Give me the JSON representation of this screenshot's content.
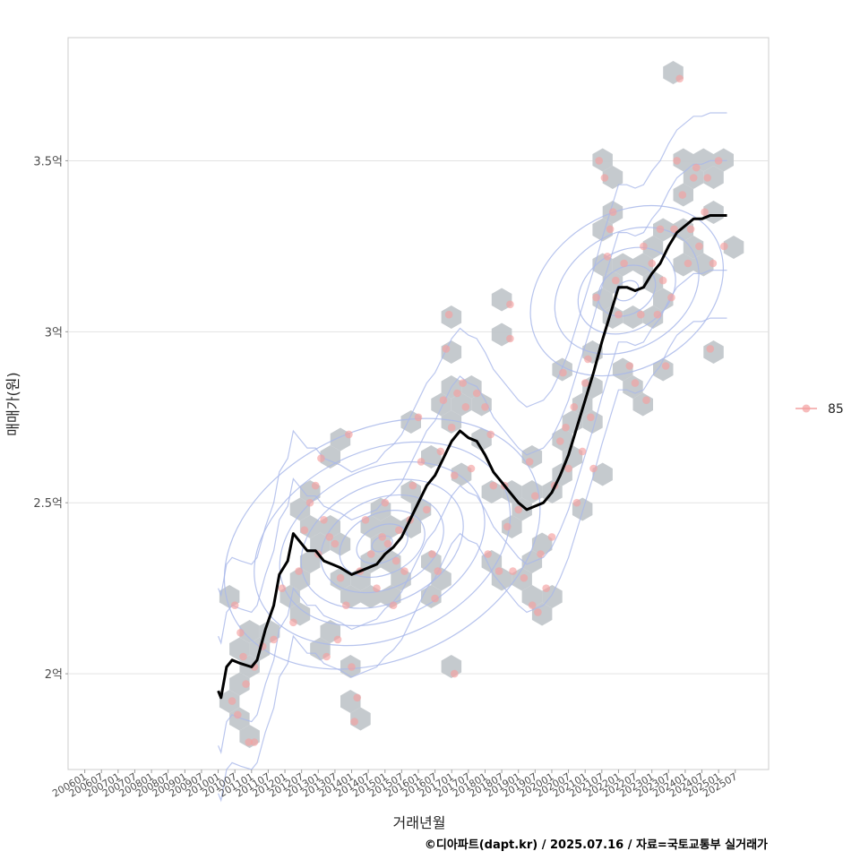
{
  "chart_data": {
    "type": "scatter",
    "xlabel": "거래년월",
    "ylabel": "매매가(원)",
    "caption": "©디아파트(dapt.kr) / 2025.07.16 / 자료=국토교통부 실거래가",
    "legend": {
      "position": "right",
      "entries": [
        "85"
      ]
    },
    "x_ticks": [
      "200601",
      "200607",
      "200701",
      "200707",
      "200801",
      "200807",
      "200901",
      "200907",
      "201001",
      "201007",
      "201101",
      "201107",
      "201201",
      "201207",
      "201301",
      "201307",
      "201401",
      "201407",
      "201501",
      "201507",
      "201601",
      "201607",
      "201701",
      "201707",
      "201801",
      "201807",
      "201901",
      "201907",
      "202001",
      "202007",
      "202101",
      "202107",
      "202201",
      "202207",
      "202301",
      "202307",
      "202401",
      "202407",
      "202501",
      "202507"
    ],
    "y_ticks": [
      {
        "value": 2.0,
        "label": "2억"
      },
      {
        "value": 2.5,
        "label": "2.5억"
      },
      {
        "value": 3.0,
        "label": "3억"
      },
      {
        "value": 3.5,
        "label": "3.5억"
      }
    ],
    "xlim": [
      "2005-07",
      "2026-07"
    ],
    "ylim": [
      1.72,
      3.86
    ],
    "grid": true,
    "colors": {
      "points": "#f4a0a0",
      "hex": "#bfc4c9",
      "contour": "#a9b8ea",
      "trend": "#000000"
    },
    "series": [
      {
        "name": "85",
        "kind": "scatter",
        "points": [
          [
            "2010-07",
            2.2
          ],
          [
            "2010-09",
            2.12
          ],
          [
            "2010-10",
            2.05
          ],
          [
            "2010-06",
            1.92
          ],
          [
            "2010-08",
            1.88
          ],
          [
            "2010-11",
            1.97
          ],
          [
            "2011-02",
            2.02
          ],
          [
            "2011-05",
            2.08
          ],
          [
            "2010-12",
            1.8
          ],
          [
            "2011-02",
            1.8
          ],
          [
            "2011-09",
            2.1
          ],
          [
            "2011-12",
            2.25
          ],
          [
            "2012-04",
            2.15
          ],
          [
            "2012-06",
            2.3
          ],
          [
            "2012-08",
            2.42
          ],
          [
            "2012-10",
            2.5
          ],
          [
            "2012-12",
            2.55
          ],
          [
            "2013-02",
            2.63
          ],
          [
            "2013-01",
            2.35
          ],
          [
            "2013-03",
            2.45
          ],
          [
            "2013-05",
            2.4
          ],
          [
            "2013-07",
            2.38
          ],
          [
            "2013-09",
            2.28
          ],
          [
            "2013-11",
            2.2
          ],
          [
            "2013-04",
            2.05
          ],
          [
            "2013-08",
            2.1
          ],
          [
            "2014-01",
            2.02
          ],
          [
            "2014-03",
            1.93
          ],
          [
            "2014-02",
            1.86
          ],
          [
            "2013-12",
            2.7
          ],
          [
            "2014-04",
            2.3
          ],
          [
            "2014-06",
            2.45
          ],
          [
            "2014-08",
            2.35
          ],
          [
            "2014-10",
            2.25
          ],
          [
            "2014-12",
            2.4
          ],
          [
            "2015-01",
            2.5
          ],
          [
            "2015-02",
            2.38
          ],
          [
            "2015-04",
            2.2
          ],
          [
            "2015-05",
            2.33
          ],
          [
            "2015-06",
            2.42
          ],
          [
            "2015-08",
            2.3
          ],
          [
            "2015-10",
            2.45
          ],
          [
            "2015-11",
            2.55
          ],
          [
            "2016-01",
            2.75
          ],
          [
            "2016-02",
            2.62
          ],
          [
            "2016-04",
            2.48
          ],
          [
            "2016-06",
            2.35
          ],
          [
            "2016-07",
            2.22
          ],
          [
            "2016-08",
            2.3
          ],
          [
            "2016-09",
            2.65
          ],
          [
            "2016-10",
            2.8
          ],
          [
            "2016-11",
            2.95
          ],
          [
            "2016-12",
            3.05
          ],
          [
            "2017-01",
            2.72
          ],
          [
            "2017-02",
            2.58
          ],
          [
            "2017-03",
            2.82
          ],
          [
            "2017-05",
            2.85
          ],
          [
            "2017-06",
            2.78
          ],
          [
            "2017-02",
            2.0
          ],
          [
            "2017-08",
            2.6
          ],
          [
            "2017-10",
            2.82
          ],
          [
            "2018-01",
            2.78
          ],
          [
            "2018-03",
            2.7
          ],
          [
            "2018-04",
            2.55
          ],
          [
            "2018-02",
            2.35
          ],
          [
            "2018-06",
            2.3
          ],
          [
            "2018-08",
            2.55
          ],
          [
            "2018-10",
            3.08
          ],
          [
            "2018-10",
            2.98
          ],
          [
            "2018-09",
            2.43
          ],
          [
            "2018-11",
            2.3
          ],
          [
            "2019-03",
            2.28
          ],
          [
            "2019-01",
            2.48
          ],
          [
            "2019-05",
            2.62
          ],
          [
            "2019-07",
            2.52
          ],
          [
            "2019-09",
            2.35
          ],
          [
            "2019-06",
            2.2
          ],
          [
            "2019-08",
            2.18
          ],
          [
            "2019-11",
            2.25
          ],
          [
            "2020-01",
            2.4
          ],
          [
            "2020-02",
            2.55
          ],
          [
            "2020-04",
            2.68
          ],
          [
            "2020-05",
            2.88
          ],
          [
            "2020-06",
            2.72
          ],
          [
            "2020-07",
            2.6
          ],
          [
            "2020-09",
            2.78
          ],
          [
            "2020-10",
            2.5
          ],
          [
            "2020-12",
            2.65
          ],
          [
            "2021-01",
            2.85
          ],
          [
            "2021-02",
            2.92
          ],
          [
            "2021-03",
            2.75
          ],
          [
            "2021-04",
            2.6
          ],
          [
            "2021-05",
            3.1
          ],
          [
            "2021-06",
            3.5
          ],
          [
            "2021-08",
            3.45
          ],
          [
            "2021-09",
            3.22
          ],
          [
            "2021-10",
            3.3
          ],
          [
            "2021-11",
            3.35
          ],
          [
            "2021-12",
            3.15
          ],
          [
            "2022-01",
            3.05
          ],
          [
            "2022-03",
            3.2
          ],
          [
            "2022-05",
            2.9
          ],
          [
            "2022-07",
            2.85
          ],
          [
            "2022-09",
            3.05
          ],
          [
            "2022-10",
            3.25
          ],
          [
            "2022-11",
            2.8
          ],
          [
            "2023-01",
            3.2
          ],
          [
            "2023-03",
            3.05
          ],
          [
            "2023-04",
            3.3
          ],
          [
            "2023-05",
            3.15
          ],
          [
            "2023-06",
            2.9
          ],
          [
            "2023-08",
            3.1
          ],
          [
            "2023-09",
            3.3
          ],
          [
            "2023-10",
            3.5
          ],
          [
            "2023-11",
            3.74
          ],
          [
            "2023-12",
            3.4
          ],
          [
            "2024-02",
            3.2
          ],
          [
            "2024-03",
            3.3
          ],
          [
            "2024-04",
            3.45
          ],
          [
            "2024-05",
            3.48
          ],
          [
            "2024-06",
            3.25
          ],
          [
            "2024-08",
            3.35
          ],
          [
            "2024-09",
            3.45
          ],
          [
            "2024-10",
            2.95
          ],
          [
            "2024-11",
            3.2
          ],
          [
            "2025-01",
            3.5
          ],
          [
            "2025-03",
            3.25
          ]
        ]
      },
      {
        "name": "",
        "kind": "trend-line",
        "points": [
          [
            "2010-01",
            1.95
          ],
          [
            "2010-02",
            1.93
          ],
          [
            "2010-04",
            2.02
          ],
          [
            "2010-06",
            2.04
          ],
          [
            "2010-09",
            2.03
          ],
          [
            "2011-01",
            2.02
          ],
          [
            "2011-03",
            2.04
          ],
          [
            "2011-06",
            2.13
          ],
          [
            "2011-09",
            2.2
          ],
          [
            "2011-11",
            2.29
          ],
          [
            "2012-02",
            2.33
          ],
          [
            "2012-04",
            2.41
          ],
          [
            "2012-06",
            2.39
          ],
          [
            "2012-09",
            2.36
          ],
          [
            "2012-12",
            2.36
          ],
          [
            "2013-03",
            2.33
          ],
          [
            "2013-06",
            2.32
          ],
          [
            "2013-09",
            2.31
          ],
          [
            "2014-01",
            2.29
          ],
          [
            "2014-04",
            2.3
          ],
          [
            "2014-07",
            2.31
          ],
          [
            "2014-10",
            2.32
          ],
          [
            "2015-01",
            2.35
          ],
          [
            "2015-04",
            2.37
          ],
          [
            "2015-07",
            2.4
          ],
          [
            "2015-10",
            2.45
          ],
          [
            "2016-01",
            2.5
          ],
          [
            "2016-04",
            2.55
          ],
          [
            "2016-07",
            2.58
          ],
          [
            "2016-10",
            2.63
          ],
          [
            "2017-01",
            2.68
          ],
          [
            "2017-04",
            2.71
          ],
          [
            "2017-07",
            2.69
          ],
          [
            "2017-10",
            2.68
          ],
          [
            "2018-01",
            2.64
          ],
          [
            "2018-04",
            2.59
          ],
          [
            "2018-07",
            2.56
          ],
          [
            "2018-10",
            2.53
          ],
          [
            "2019-01",
            2.5
          ],
          [
            "2019-04",
            2.48
          ],
          [
            "2019-07",
            2.49
          ],
          [
            "2019-10",
            2.5
          ],
          [
            "2020-01",
            2.53
          ],
          [
            "2020-04",
            2.58
          ],
          [
            "2020-07",
            2.64
          ],
          [
            "2020-10",
            2.72
          ],
          [
            "2021-01",
            2.8
          ],
          [
            "2021-04",
            2.88
          ],
          [
            "2021-07",
            2.97
          ],
          [
            "2021-10",
            3.05
          ],
          [
            "2022-01",
            3.13
          ],
          [
            "2022-04",
            3.13
          ],
          [
            "2022-07",
            3.12
          ],
          [
            "2022-10",
            3.13
          ],
          [
            "2023-01",
            3.17
          ],
          [
            "2023-04",
            3.2
          ],
          [
            "2023-07",
            3.25
          ],
          [
            "2023-10",
            3.29
          ],
          [
            "2024-01",
            3.31
          ],
          [
            "2024-04",
            3.33
          ],
          [
            "2024-07",
            3.33
          ],
          [
            "2024-10",
            3.34
          ],
          [
            "2025-01",
            3.34
          ],
          [
            "2025-04",
            3.34
          ]
        ]
      }
    ]
  }
}
